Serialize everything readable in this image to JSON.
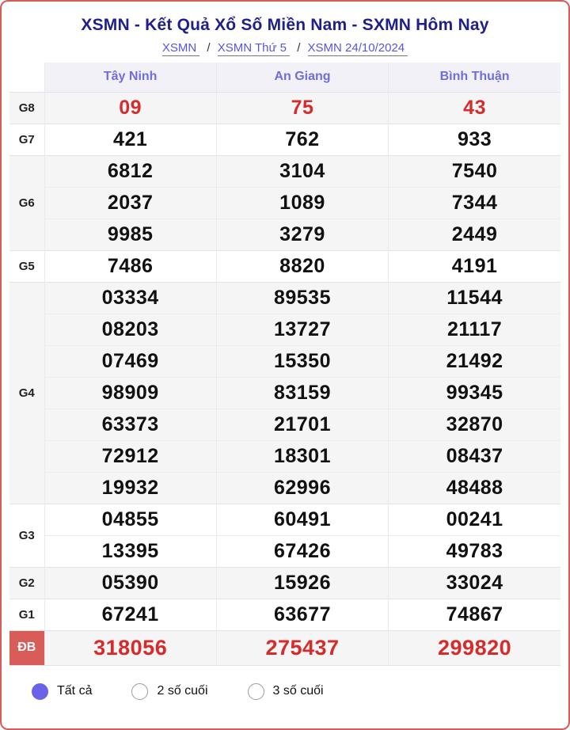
{
  "header": {
    "title": "XSMN - Kết Quả Xổ Số Miền Nam - SXMN Hôm Nay",
    "separator": "/",
    "breadcrumb": [
      {
        "label": "XSMN"
      },
      {
        "label": "XSMN Thứ 5"
      },
      {
        "label": "XSMN 24/10/2024"
      }
    ]
  },
  "table": {
    "columns": [
      "Tây Ninh",
      "An Giang",
      "Bình Thuận"
    ],
    "groups": [
      {
        "label": "G8",
        "highlight": true,
        "rows": [
          [
            "09",
            "75",
            "43"
          ]
        ]
      },
      {
        "label": "G7",
        "highlight": false,
        "rows": [
          [
            "421",
            "762",
            "933"
          ]
        ]
      },
      {
        "label": "G6",
        "highlight": false,
        "rows": [
          [
            "6812",
            "3104",
            "7540"
          ],
          [
            "2037",
            "1089",
            "7344"
          ],
          [
            "9985",
            "3279",
            "2449"
          ]
        ]
      },
      {
        "label": "G5",
        "highlight": false,
        "rows": [
          [
            "7486",
            "8820",
            "4191"
          ]
        ]
      },
      {
        "label": "G4",
        "highlight": false,
        "rows": [
          [
            "03334",
            "89535",
            "11544"
          ],
          [
            "08203",
            "13727",
            "21117"
          ],
          [
            "07469",
            "15350",
            "21492"
          ],
          [
            "98909",
            "83159",
            "99345"
          ],
          [
            "63373",
            "21701",
            "32870"
          ],
          [
            "72912",
            "18301",
            "08437"
          ],
          [
            "19932",
            "62996",
            "48488"
          ]
        ]
      },
      {
        "label": "G3",
        "highlight": false,
        "rows": [
          [
            "04855",
            "60491",
            "00241"
          ],
          [
            "13395",
            "67426",
            "49783"
          ]
        ]
      },
      {
        "label": "G2",
        "highlight": false,
        "rows": [
          [
            "05390",
            "15926",
            "33024"
          ]
        ]
      },
      {
        "label": "G1",
        "highlight": false,
        "rows": [
          [
            "67241",
            "63677",
            "74867"
          ]
        ]
      },
      {
        "label": "ĐB",
        "highlight": true,
        "rows": [
          [
            "318056",
            "275437",
            "299820"
          ]
        ]
      }
    ]
  },
  "filters": {
    "options": [
      {
        "label": "Tất cả",
        "selected": true
      },
      {
        "label": "2 số cuối",
        "selected": false
      },
      {
        "label": "3 số cuối",
        "selected": false
      }
    ]
  },
  "colors": {
    "card_border": "#d85c57",
    "special_label_bg": "#d85c57",
    "value_red": "#d62b2b",
    "title_navy": "#20208a",
    "link_indigo": "#5656dd",
    "column_header_text": "#6e6edd",
    "column_header_bg": "#f1f1f7",
    "stripe_row_bg": "#f5f5f5",
    "radio_fill": "#6a63e8"
  }
}
